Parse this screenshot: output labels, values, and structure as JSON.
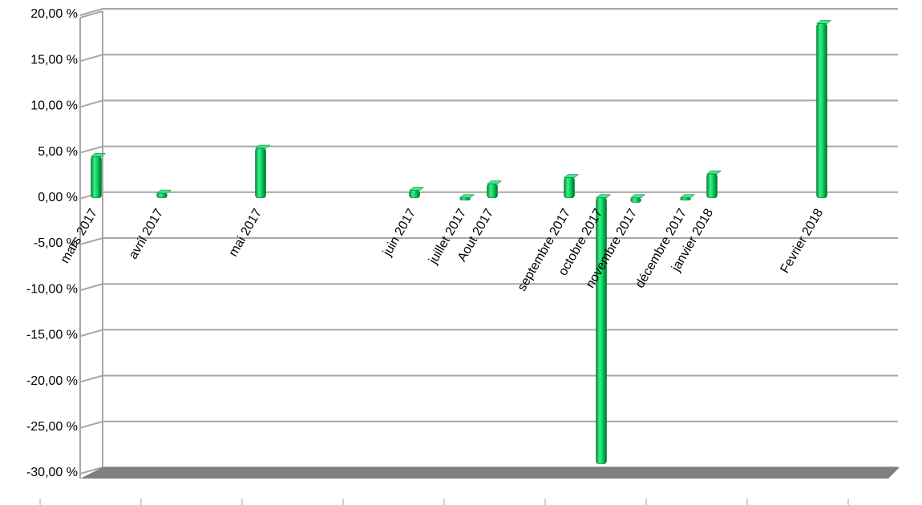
{
  "chart_data": {
    "type": "bar",
    "categories": [
      "mars 2017",
      "avril 2017",
      "mai 2017",
      "juin 2017",
      "juillet 2017",
      "Aout 2017",
      "septembre 2017",
      "octobre 2017",
      "novembre 2017",
      "décembre 2017",
      "janvier 2018",
      "Fevrier 2018"
    ],
    "values": [
      4.5,
      0.5,
      5.4,
      0.8,
      0,
      1.5,
      2.2,
      -29,
      -0.5,
      0,
      2.6,
      19
    ],
    "color": "#00c050",
    "ylim": [
      -30,
      20
    ],
    "yticks": [
      {
        "value": -30,
        "label": "-30,00 %"
      },
      {
        "value": -25,
        "label": "-25,00 %"
      },
      {
        "value": -20,
        "label": "-20,00 %"
      },
      {
        "value": -15,
        "label": "-15,00 %"
      },
      {
        "value": -10,
        "label": "-10,00 %"
      },
      {
        "value": -5,
        "label": "-5,00 %"
      },
      {
        "value": 0,
        "label": "0,00 %"
      },
      {
        "value": 5,
        "label": "5,00 %"
      },
      {
        "value": 10,
        "label": "10,00 %"
      },
      {
        "value": 15,
        "label": "15,00 %"
      },
      {
        "value": 20,
        "label": "20,00 %"
      }
    ],
    "grid": true
  }
}
